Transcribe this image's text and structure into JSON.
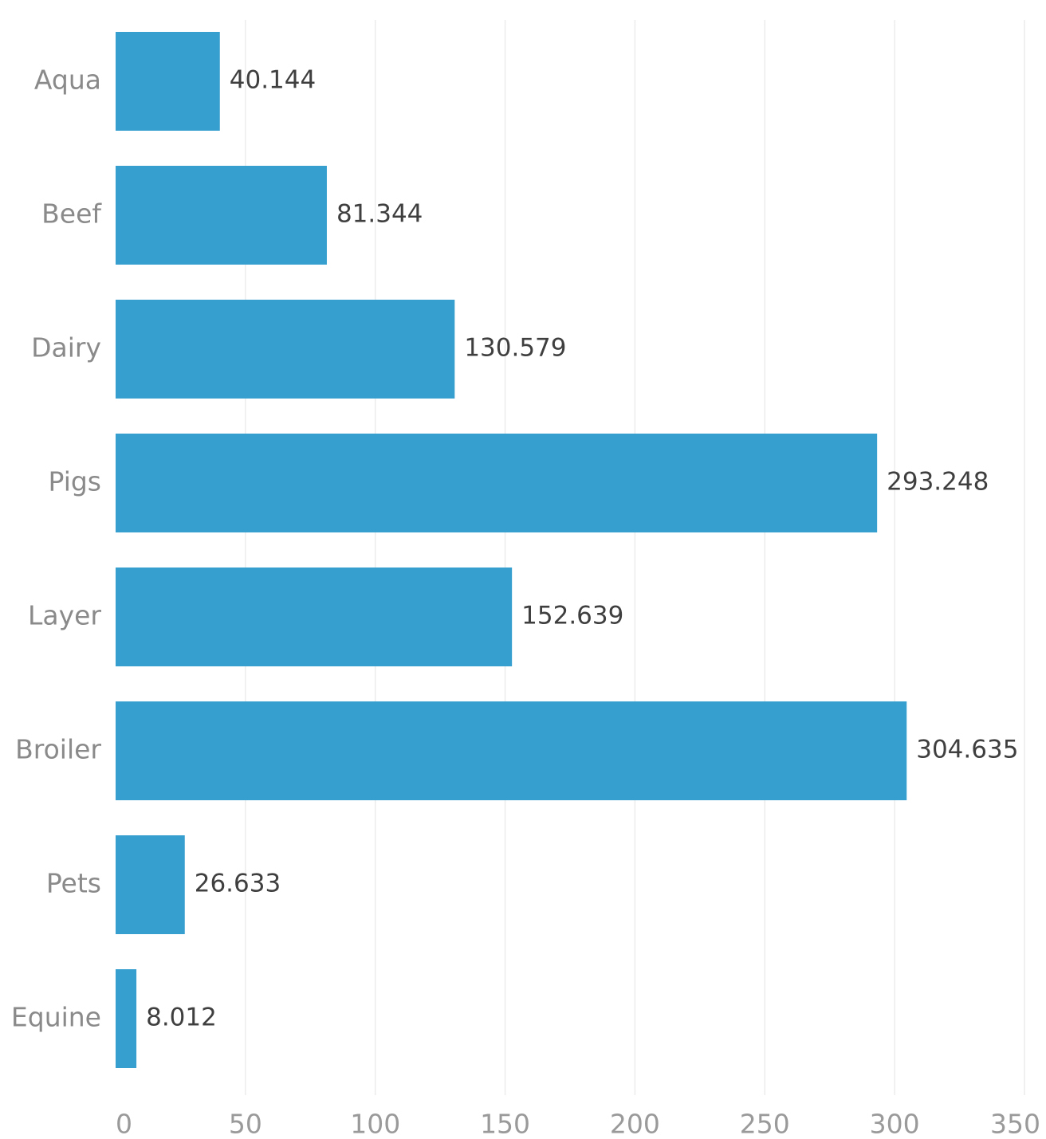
{
  "chart_data": {
    "type": "bar",
    "orientation": "horizontal",
    "categories": [
      "Aqua",
      "Beef",
      "Dairy",
      "Pigs",
      "Layer",
      "Broiler",
      "Pets",
      "Equine"
    ],
    "values": [
      40.144,
      81.344,
      130.579,
      293.248,
      152.639,
      304.635,
      26.633,
      8.012
    ],
    "value_labels": [
      "40.144",
      "81.344",
      "130.579",
      "293.248",
      "152.639",
      "304.635",
      "26.633",
      "8.012"
    ],
    "x_ticks": [
      "0",
      "50",
      "100",
      "150",
      "200",
      "250",
      "300",
      "350"
    ],
    "xlim": [
      0,
      350
    ],
    "grid": true,
    "legend": "none",
    "title": "",
    "xlabel": "",
    "ylabel": "",
    "bar_color": "#369fcf"
  }
}
